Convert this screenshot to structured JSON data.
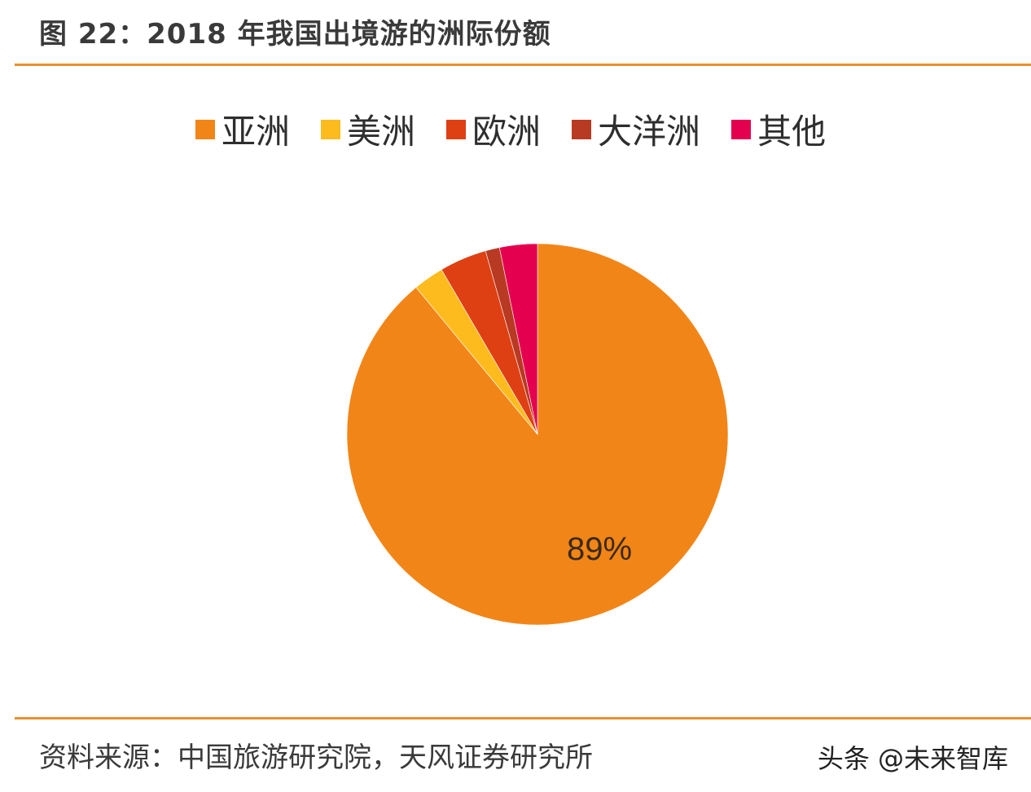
{
  "title": "图 22：2018 年我国出境游的洲际份额",
  "legend": [
    {
      "label": "亚洲",
      "color": "#F28517"
    },
    {
      "label": "美洲",
      "color": "#FDBB1E"
    },
    {
      "label": "欧洲",
      "color": "#DE4013"
    },
    {
      "label": "大洋洲",
      "color": "#B83A22"
    },
    {
      "label": "其他",
      "color": "#E5004F"
    }
  ],
  "pie_label": "89%",
  "source": "资料来源：中国旅游研究院，天风证券研究所",
  "watermark": "头条 @未来智库",
  "accent_color": "#E8912E",
  "chart_data": {
    "type": "pie",
    "title": "图 22：2018 年我国出境游的洲际份额",
    "categories": [
      "亚洲",
      "美洲",
      "欧洲",
      "大洋洲",
      "其他"
    ],
    "values": [
      89,
      2.6,
      4.0,
      1.2,
      3.2
    ],
    "colors": [
      "#F28517",
      "#FDBB1E",
      "#DE4013",
      "#B83A22",
      "#E5004F"
    ],
    "data_labels": {
      "亚洲": "89%"
    },
    "legend_position": "top",
    "start_angle": "12 o'clock, clockwise from 亚洲"
  }
}
